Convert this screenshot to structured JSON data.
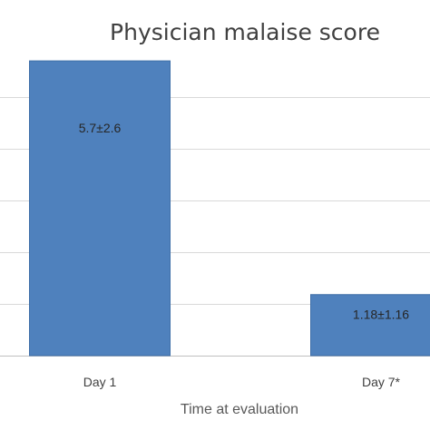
{
  "chart_data": {
    "type": "bar",
    "title": "Physician malaise score",
    "xlabel": "Time at evaluation",
    "ylabel": "",
    "categories": [
      "Day 1",
      "Day 7*"
    ],
    "values": [
      5.7,
      1.18
    ],
    "data_labels": [
      "5.7±2.6",
      "1.18±1.16"
    ],
    "ylim": [
      0,
      6
    ],
    "gridlines": [
      0,
      1,
      2,
      3,
      4,
      5
    ],
    "grid": true,
    "legend": "none",
    "bar_color": "#4f81bd",
    "bar_edge_color": "#3f6fa8",
    "grid_color": "#d9d9d9"
  }
}
